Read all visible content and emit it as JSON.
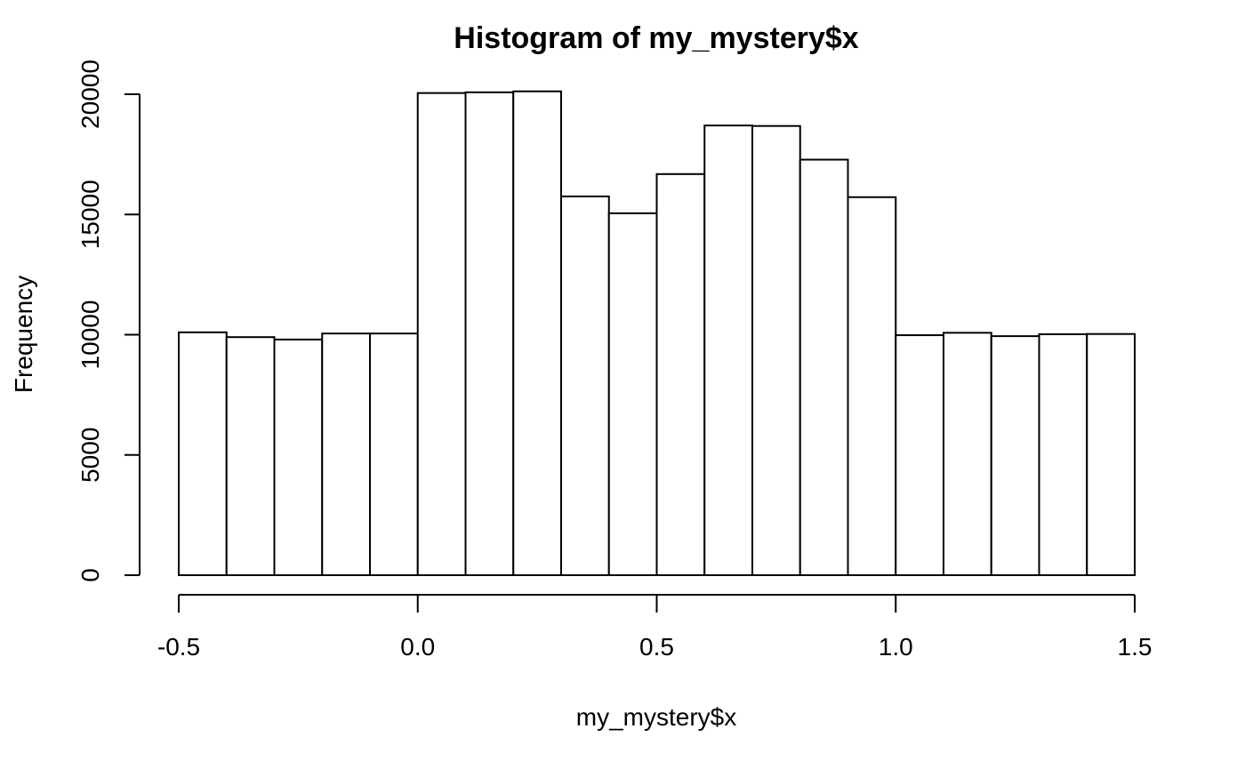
{
  "chart_data": {
    "type": "bar",
    "subtype": "histogram",
    "title": "Histogram of my_mystery$x",
    "xlabel": "my_mystery$x",
    "ylabel": "Frequency",
    "bin_edges": [
      -0.5,
      -0.4,
      -0.3,
      -0.2,
      -0.1,
      0.0,
      0.1,
      0.2,
      0.3,
      0.4,
      0.5,
      0.6,
      0.7,
      0.8,
      0.9,
      1.0,
      1.1,
      1.2,
      1.3,
      1.4,
      1.5
    ],
    "values": [
      10100,
      9900,
      9800,
      10050,
      10050,
      20050,
      20080,
      20120,
      15750,
      15050,
      16680,
      18700,
      18680,
      17280,
      15720,
      9980,
      10080,
      9940,
      10020,
      10030
    ],
    "xlim": [
      -0.5,
      1.5
    ],
    "ylim": [
      0,
      20000
    ],
    "x_ticks": [
      -0.5,
      0.0,
      0.5,
      1.0,
      1.5
    ],
    "x_tick_labels": [
      "-0.5",
      "0.0",
      "0.5",
      "1.0",
      "1.5"
    ],
    "y_ticks": [
      0,
      5000,
      10000,
      15000,
      20000
    ],
    "y_tick_labels": [
      "0",
      "5000",
      "10000",
      "15000",
      "20000"
    ],
    "grid": false,
    "bar_fill": "#ffffff",
    "bar_stroke": "#000000"
  }
}
